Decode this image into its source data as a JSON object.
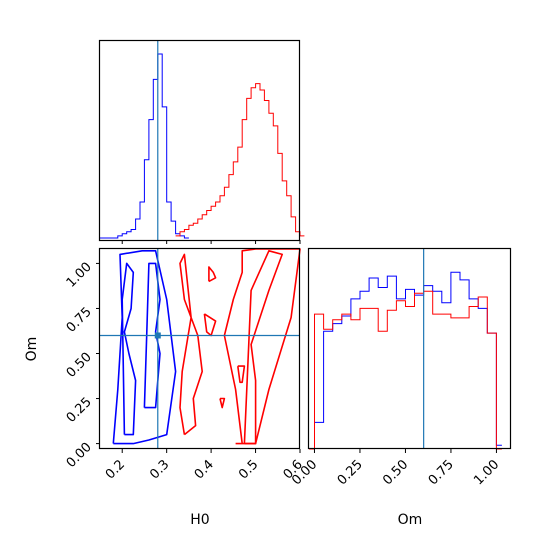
{
  "chart_data": {
    "type": "corner",
    "parameters": [
      "H0",
      "Om"
    ],
    "axis_labels": {
      "x_left": "H0",
      "x_right": "Om",
      "y_left": "Om"
    },
    "ranges": {
      "H0": [
        0.15,
        0.6
      ],
      "Om": [
        -0.03,
        1.08
      ]
    },
    "truth": {
      "H0": 0.28,
      "Om": 0.6
    },
    "ticks": {
      "H0": [
        0.2,
        0.3,
        0.4,
        0.5,
        0.6
      ],
      "H0_labels": [
        "0.2",
        "0.3",
        "0.4",
        "0.5",
        "0.6"
      ],
      "Om": [
        0.0,
        0.25,
        0.5,
        0.75,
        1.0
      ],
      "Om_labels": [
        "0.00",
        "0.25",
        "0.50",
        "0.75",
        "1.00"
      ]
    },
    "colors": {
      "series_blue": "#0000ff",
      "series_red": "#ff0000",
      "truth_line": "#1f77b4"
    },
    "series": [
      {
        "color": "blue",
        "hist_H0": {
          "bins": [
            0.15,
            0.16,
            0.17,
            0.18,
            0.19,
            0.2,
            0.21,
            0.22,
            0.23,
            0.24,
            0.25,
            0.26,
            0.27,
            0.28,
            0.29,
            0.3,
            0.31,
            0.32,
            0.33,
            0.34
          ],
          "values": [
            0,
            0,
            0,
            0,
            1,
            2,
            3,
            4,
            9,
            17,
            37,
            56,
            75,
            87,
            62,
            17,
            8,
            2,
            1,
            0
          ]
        },
        "hist_Om": {
          "bins": [
            -0.03,
            0.0,
            0.05,
            0.1,
            0.15,
            0.2,
            0.25,
            0.3,
            0.35,
            0.4,
            0.45,
            0.5,
            0.55,
            0.6,
            0.65,
            0.7,
            0.75,
            0.8,
            0.85,
            0.9,
            0.95,
            1.0
          ],
          "values": [
            0.0,
            0.14,
            0.62,
            0.66,
            0.7,
            0.79,
            0.83,
            0.9,
            0.85,
            0.91,
            0.79,
            0.84,
            0.81,
            0.86,
            0.83,
            0.77,
            0.93,
            0.89,
            0.79,
            0.74,
            0.61,
            0.02
          ]
        },
        "contours_2d": [
          {
            "H0": [
              0.205,
              0.225,
              0.23,
              0.215,
              0.205,
              0.22,
              0.225,
              0.21,
              0.2,
              0.205
            ],
            "Om": [
              0.05,
              0.05,
              0.35,
              0.5,
              0.62,
              0.75,
              0.95,
              1.0,
              0.8,
              0.05
            ]
          },
          {
            "H0": [
              0.25,
              0.275,
              0.285,
              0.275,
              0.285,
              0.275,
              0.26,
              0.255,
              0.25
            ],
            "Om": [
              0.2,
              0.2,
              0.5,
              0.62,
              0.8,
              1.0,
              1.0,
              0.6,
              0.2
            ]
          },
          {
            "H0": [
              0.18,
              0.225,
              0.26,
              0.3,
              0.32,
              0.3,
              0.275,
              0.245,
              0.195,
              0.2,
              0.19,
              0.18
            ],
            "Om": [
              0.0,
              0.0,
              0.02,
              0.05,
              0.4,
              0.8,
              1.07,
              1.07,
              1.05,
              0.7,
              0.3,
              0.0
            ]
          }
        ]
      },
      {
        "color": "red",
        "hist_H0": {
          "bins": [
            0.32,
            0.33,
            0.34,
            0.35,
            0.36,
            0.37,
            0.38,
            0.39,
            0.4,
            0.41,
            0.42,
            0.43,
            0.44,
            0.45,
            0.46,
            0.47,
            0.48,
            0.49,
            0.5,
            0.51,
            0.52,
            0.53,
            0.54,
            0.55,
            0.56,
            0.57,
            0.58,
            0.59,
            0.6
          ],
          "values": [
            1,
            3,
            4,
            6,
            7,
            9,
            11,
            13,
            15,
            17,
            20,
            24,
            30,
            36,
            43,
            56,
            66,
            71,
            73,
            70,
            65,
            59,
            53,
            40,
            27,
            20,
            10,
            3,
            1
          ]
        },
        "hist_Om": {
          "bins": [
            -0.03,
            0.0,
            0.05,
            0.1,
            0.15,
            0.2,
            0.25,
            0.3,
            0.35,
            0.4,
            0.45,
            0.5,
            0.55,
            0.6,
            0.65,
            0.7,
            0.75,
            0.8,
            0.85,
            0.9,
            0.95,
            1.0
          ],
          "values": [
            0.0,
            0.71,
            0.63,
            0.68,
            0.71,
            0.68,
            0.74,
            0.74,
            0.62,
            0.73,
            0.78,
            0.75,
            0.82,
            0.83,
            0.71,
            0.71,
            0.69,
            0.69,
            0.75,
            0.8,
            0.61,
            0.0
          ]
        },
        "contours_2d": [
          {
            "H0": [
              0.475,
              0.5,
              0.5,
              0.49,
              0.53,
              0.56,
              0.53,
              0.49,
              0.475
            ],
            "Om": [
              0.0,
              0.0,
              0.35,
              0.55,
              0.85,
              1.05,
              1.07,
              0.85,
              0.0
            ]
          },
          {
            "H0": [
              0.455,
              0.47,
              0.455,
              0.43,
              0.45,
              0.47,
              0.47,
              0.5,
              0.6,
              0.58,
              0.53,
              0.5,
              0.455
            ],
            "Om": [
              0.0,
              0.0,
              0.3,
              0.6,
              0.8,
              0.95,
              1.07,
              1.08,
              1.08,
              0.7,
              0.3,
              0.0,
              0.0
            ]
          },
          {
            "H0": [
              0.34,
              0.365,
              0.36,
              0.38,
              0.37,
              0.34,
              0.33,
              0.34,
              0.355,
              0.335,
              0.33,
              0.34
            ],
            "Om": [
              0.05,
              0.1,
              0.25,
              0.4,
              0.6,
              0.8,
              1.0,
              1.05,
              0.7,
              0.4,
              0.2,
              0.05
            ]
          },
          {
            "H0": [
              0.395,
              0.41,
              0.405,
              0.395,
              0.395
            ],
            "Om": [
              0.9,
              0.92,
              0.95,
              0.98,
              0.9
            ]
          },
          {
            "H0": [
              0.385,
              0.41,
              0.4,
              0.39,
              0.385
            ],
            "Om": [
              0.72,
              0.68,
              0.6,
              0.62,
              0.72
            ]
          },
          {
            "H0": [
              0.46,
              0.475,
              0.47,
              0.465,
              0.46
            ],
            "Om": [
              0.43,
              0.43,
              0.34,
              0.34,
              0.43
            ]
          },
          {
            "H0": [
              0.42,
              0.43,
              0.425,
              0.42
            ],
            "Om": [
              0.25,
              0.25,
              0.2,
              0.25
            ]
          }
        ]
      }
    ]
  }
}
